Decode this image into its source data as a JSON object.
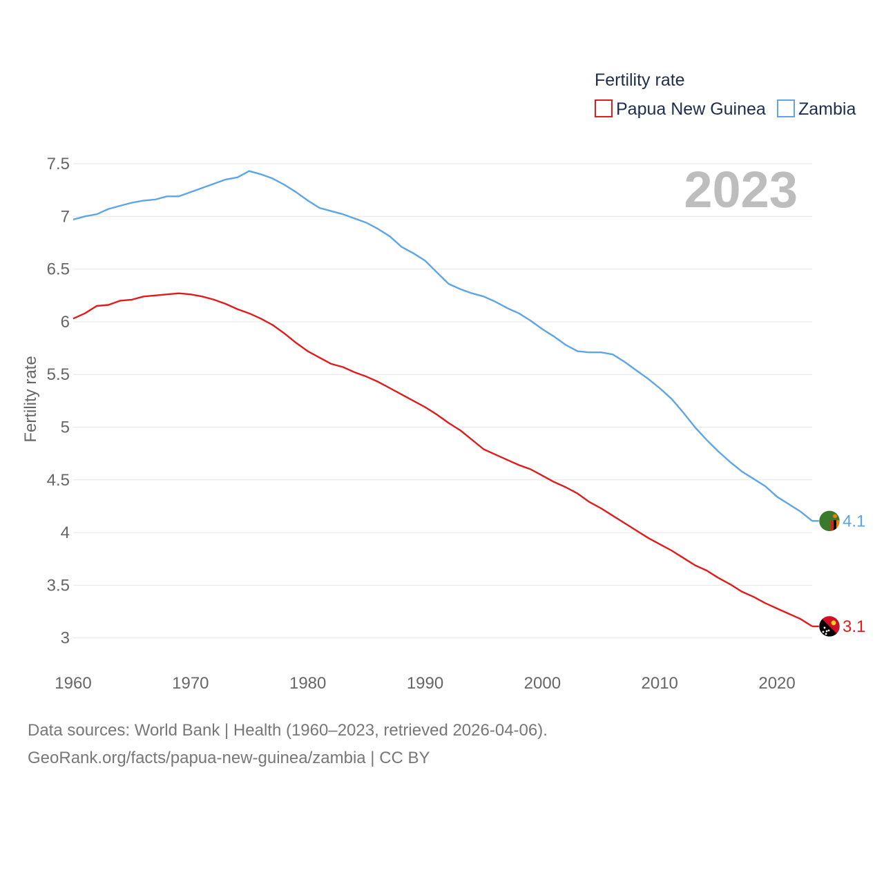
{
  "chart_data": {
    "type": "line",
    "title": "Fertility rate",
    "ylabel": "Fertility rate",
    "xlabel": "",
    "current_year": "2023",
    "xlim": [
      1960,
      2023
    ],
    "ylim": [
      2.9,
      7.65
    ],
    "x_ticks": [
      1960,
      1970,
      1980,
      1990,
      2000,
      2010,
      2020
    ],
    "y_ticks": [
      {
        "value": 3,
        "label": "3"
      },
      {
        "value": 3.5,
        "label": "3.5"
      },
      {
        "value": 4,
        "label": "4"
      },
      {
        "value": 4.5,
        "label": "4.5"
      },
      {
        "value": 5,
        "label": "5"
      },
      {
        "value": 5.5,
        "label": "5.5"
      },
      {
        "value": 6,
        "label": "6"
      },
      {
        "value": 6.5,
        "label": "6.5"
      },
      {
        "value": 7,
        "label": "7"
      },
      {
        "value": 7.5,
        "label": "7.5"
      }
    ],
    "grid": true,
    "legend_position": "top-right",
    "series": [
      {
        "name": "Papua New Guinea",
        "color": "#e31a1c",
        "end_label": "3.1",
        "flag_icon": "papua-new-guinea-flag-icon",
        "points": [
          [
            1960,
            6.03
          ],
          [
            1961,
            6.08
          ],
          [
            1962,
            6.15
          ],
          [
            1963,
            6.16
          ],
          [
            1964,
            6.2
          ],
          [
            1965,
            6.21
          ],
          [
            1966,
            6.24
          ],
          [
            1967,
            6.25
          ],
          [
            1968,
            6.26
          ],
          [
            1969,
            6.27
          ],
          [
            1970,
            6.26
          ],
          [
            1971,
            6.24
          ],
          [
            1972,
            6.21
          ],
          [
            1973,
            6.17
          ],
          [
            1974,
            6.12
          ],
          [
            1975,
            6.08
          ],
          [
            1976,
            6.03
          ],
          [
            1977,
            5.97
          ],
          [
            1978,
            5.89
          ],
          [
            1979,
            5.8
          ],
          [
            1980,
            5.72
          ],
          [
            1981,
            5.66
          ],
          [
            1982,
            5.6
          ],
          [
            1983,
            5.57
          ],
          [
            1984,
            5.52
          ],
          [
            1985,
            5.48
          ],
          [
            1986,
            5.43
          ],
          [
            1987,
            5.37
          ],
          [
            1988,
            5.31
          ],
          [
            1989,
            5.25
          ],
          [
            1990,
            5.19
          ],
          [
            1991,
            5.12
          ],
          [
            1992,
            5.04
          ],
          [
            1993,
            4.97
          ],
          [
            1994,
            4.88
          ],
          [
            1995,
            4.79
          ],
          [
            1996,
            4.74
          ],
          [
            1997,
            4.69
          ],
          [
            1998,
            4.64
          ],
          [
            1999,
            4.6
          ],
          [
            2000,
            4.54
          ],
          [
            2001,
            4.48
          ],
          [
            2002,
            4.43
          ],
          [
            2003,
            4.37
          ],
          [
            2004,
            4.29
          ],
          [
            2005,
            4.23
          ],
          [
            2006,
            4.16
          ],
          [
            2007,
            4.09
          ],
          [
            2008,
            4.02
          ],
          [
            2009,
            3.95
          ],
          [
            2010,
            3.89
          ],
          [
            2011,
            3.83
          ],
          [
            2012,
            3.76
          ],
          [
            2013,
            3.69
          ],
          [
            2014,
            3.64
          ],
          [
            2015,
            3.57
          ],
          [
            2016,
            3.51
          ],
          [
            2017,
            3.44
          ],
          [
            2018,
            3.39
          ],
          [
            2019,
            3.33
          ],
          [
            2020,
            3.28
          ],
          [
            2021,
            3.23
          ],
          [
            2022,
            3.18
          ],
          [
            2023,
            3.11
          ]
        ]
      },
      {
        "name": "Zambia",
        "color": "#5da5e8",
        "end_label": "4.1",
        "flag_icon": "zambia-flag-icon",
        "points": [
          [
            1960,
            6.97
          ],
          [
            1961,
            7.0
          ],
          [
            1962,
            7.02
          ],
          [
            1963,
            7.07
          ],
          [
            1964,
            7.1
          ],
          [
            1965,
            7.13
          ],
          [
            1966,
            7.15
          ],
          [
            1967,
            7.16
          ],
          [
            1968,
            7.19
          ],
          [
            1969,
            7.19
          ],
          [
            1970,
            7.23
          ],
          [
            1971,
            7.27
          ],
          [
            1972,
            7.31
          ],
          [
            1973,
            7.35
          ],
          [
            1974,
            7.37
          ],
          [
            1975,
            7.43
          ],
          [
            1976,
            7.4
          ],
          [
            1977,
            7.36
          ],
          [
            1978,
            7.3
          ],
          [
            1979,
            7.23
          ],
          [
            1980,
            7.15
          ],
          [
            1981,
            7.08
          ],
          [
            1982,
            7.05
          ],
          [
            1983,
            7.02
          ],
          [
            1984,
            6.98
          ],
          [
            1985,
            6.94
          ],
          [
            1986,
            6.88
          ],
          [
            1987,
            6.81
          ],
          [
            1988,
            6.71
          ],
          [
            1989,
            6.65
          ],
          [
            1990,
            6.58
          ],
          [
            1991,
            6.47
          ],
          [
            1992,
            6.36
          ],
          [
            1993,
            6.31
          ],
          [
            1994,
            6.27
          ],
          [
            1995,
            6.24
          ],
          [
            1996,
            6.19
          ],
          [
            1997,
            6.13
          ],
          [
            1998,
            6.08
          ],
          [
            1999,
            6.01
          ],
          [
            2000,
            5.93
          ],
          [
            2001,
            5.86
          ],
          [
            2002,
            5.78
          ],
          [
            2003,
            5.72
          ],
          [
            2004,
            5.71
          ],
          [
            2005,
            5.71
          ],
          [
            2006,
            5.69
          ],
          [
            2007,
            5.62
          ],
          [
            2008,
            5.54
          ],
          [
            2009,
            5.46
          ],
          [
            2010,
            5.37
          ],
          [
            2011,
            5.27
          ],
          [
            2012,
            5.14
          ],
          [
            2013,
            5.0
          ],
          [
            2014,
            4.88
          ],
          [
            2015,
            4.77
          ],
          [
            2016,
            4.67
          ],
          [
            2017,
            4.58
          ],
          [
            2018,
            4.51
          ],
          [
            2019,
            4.44
          ],
          [
            2020,
            4.34
          ],
          [
            2021,
            4.27
          ],
          [
            2022,
            4.2
          ],
          [
            2023,
            4.11
          ]
        ]
      }
    ]
  },
  "footer": {
    "source_line": "Data sources: World Bank | Health (1960–2023, retrieved 2026-04-06).",
    "link_line": "GeoRank.org/facts/papua-new-guinea/zambia | CC BY"
  }
}
